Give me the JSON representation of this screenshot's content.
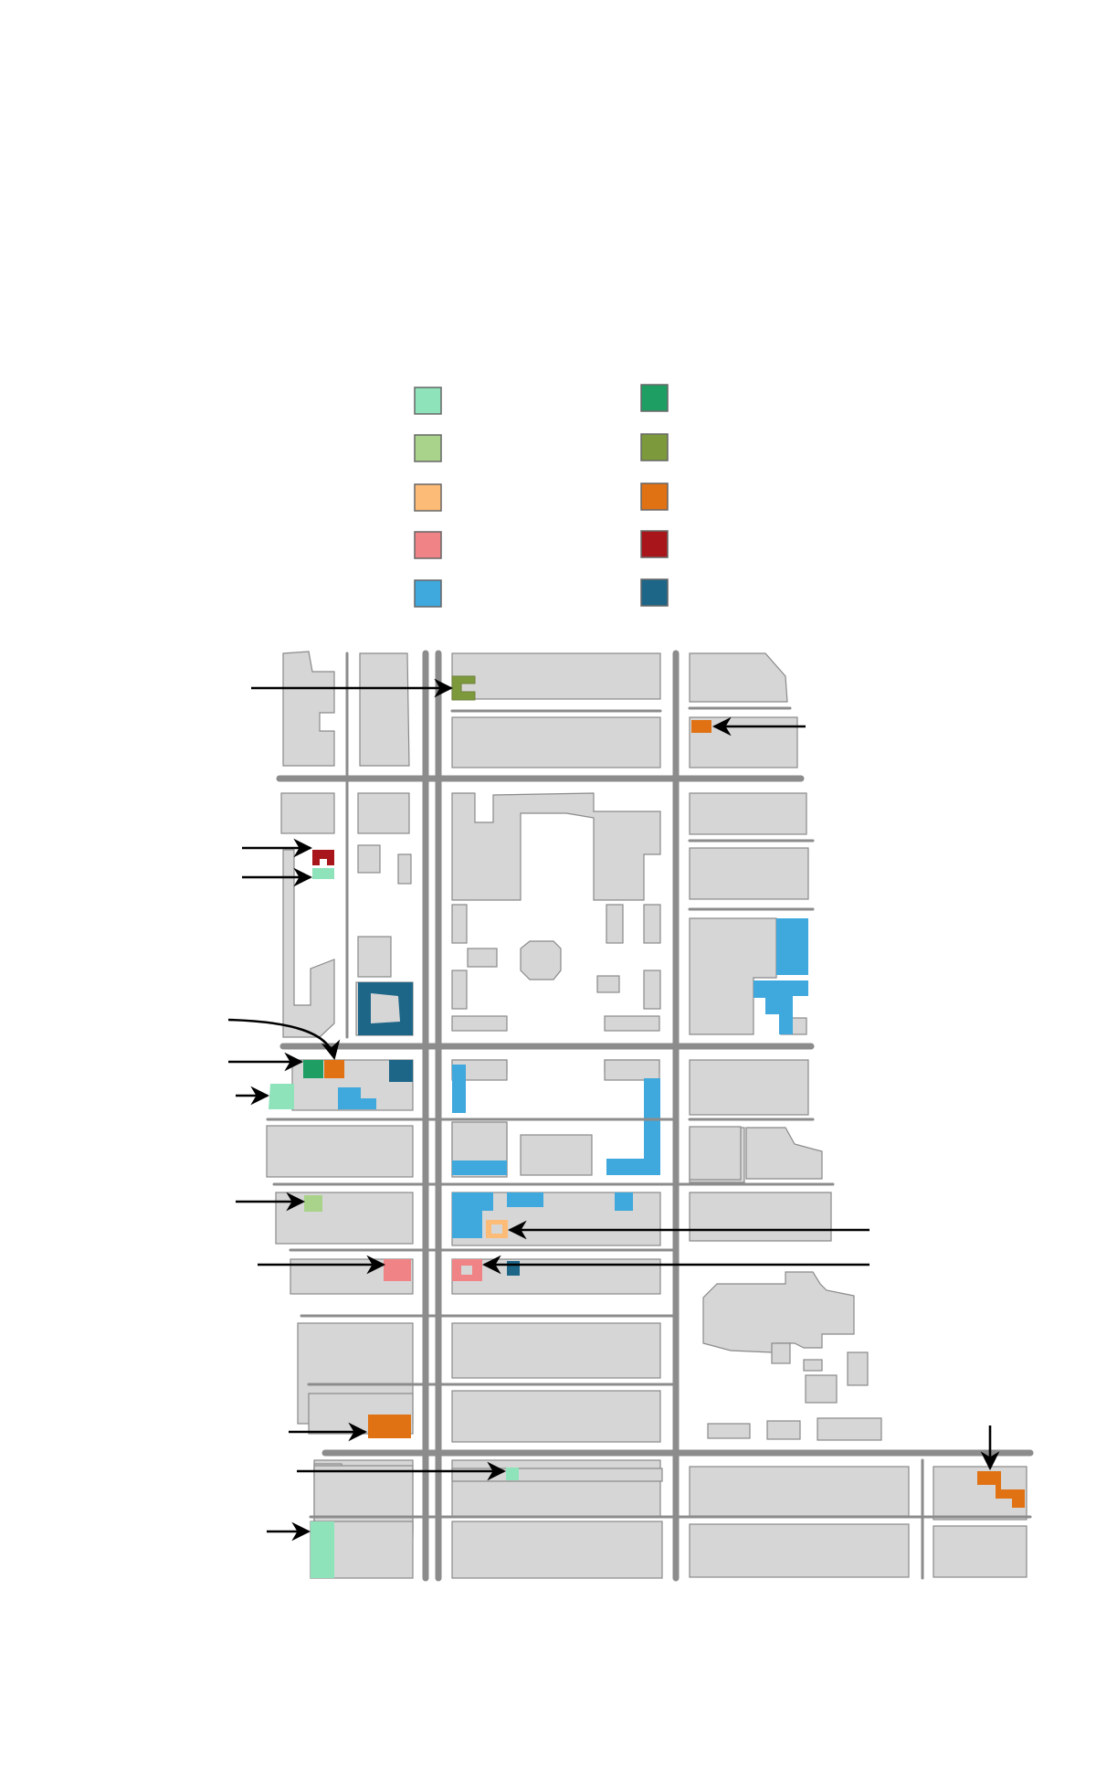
{
  "legend": [
    {
      "name": "swatch-mint",
      "color": "#8ee3bb"
    },
    {
      "name": "swatch-dark-green",
      "color": "#1f9e64"
    },
    {
      "name": "swatch-light-green",
      "color": "#a9d38a"
    },
    {
      "name": "swatch-olive",
      "color": "#7c9a3c"
    },
    {
      "name": "swatch-light-orange",
      "color": "#fdbb78"
    },
    {
      "name": "swatch-orange",
      "color": "#e07214"
    },
    {
      "name": "swatch-pink",
      "color": "#ef8385"
    },
    {
      "name": "swatch-dark-red",
      "color": "#a8161b"
    },
    {
      "name": "swatch-light-blue",
      "color": "#3fa8dc"
    },
    {
      "name": "swatch-dark-blue",
      "color": "#1d6688"
    }
  ],
  "colors": {
    "building": "#d6d6d6",
    "building_outline": "#8a8a8a",
    "road": "#8c8c8c",
    "arrow": "#000000"
  }
}
